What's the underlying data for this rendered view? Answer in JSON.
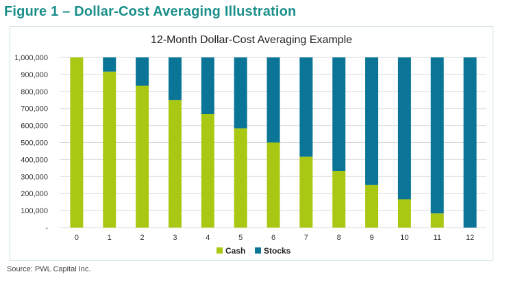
{
  "figure_title": "Figure 1 – Dollar-Cost Averaging Illustration",
  "source": "Source: PWL Capital Inc.",
  "colors": {
    "cash": "#a9c813",
    "stocks": "#0a7596",
    "title": "#1a8f8a",
    "grid": "#d9d9d9"
  },
  "chart_data": {
    "type": "bar",
    "stacked": true,
    "title": "12-Month Dollar-Cost Averaging Example",
    "xlabel": "",
    "ylabel": "",
    "categories": [
      "0",
      "1",
      "2",
      "3",
      "4",
      "5",
      "6",
      "7",
      "8",
      "9",
      "10",
      "11",
      "12"
    ],
    "series": [
      {
        "name": "Cash",
        "values": [
          1000000,
          916667,
          833333,
          750000,
          666667,
          583333,
          500000,
          416667,
          333333,
          250000,
          166667,
          83333,
          0
        ]
      },
      {
        "name": "Stocks",
        "values": [
          0,
          83333,
          166667,
          250000,
          333333,
          416667,
          500000,
          583333,
          666667,
          750000,
          833333,
          916667,
          1000000
        ]
      }
    ],
    "ylim": [
      0,
      1000000
    ],
    "yticks": [
      {
        "value": 0,
        "label": "-"
      },
      {
        "value": 100000,
        "label": "100,000"
      },
      {
        "value": 200000,
        "label": "200,000"
      },
      {
        "value": 300000,
        "label": "300,000"
      },
      {
        "value": 400000,
        "label": "400,000"
      },
      {
        "value": 500000,
        "label": "500,000"
      },
      {
        "value": 600000,
        "label": "600,000"
      },
      {
        "value": 700000,
        "label": "700,000"
      },
      {
        "value": 800000,
        "label": "800,000"
      },
      {
        "value": 900000,
        "label": "900,000"
      },
      {
        "value": 1000000,
        "label": "1,000,000"
      }
    ],
    "legend": {
      "position": "bottom",
      "entries": [
        "Cash",
        "Stocks"
      ]
    },
    "grid": true
  }
}
